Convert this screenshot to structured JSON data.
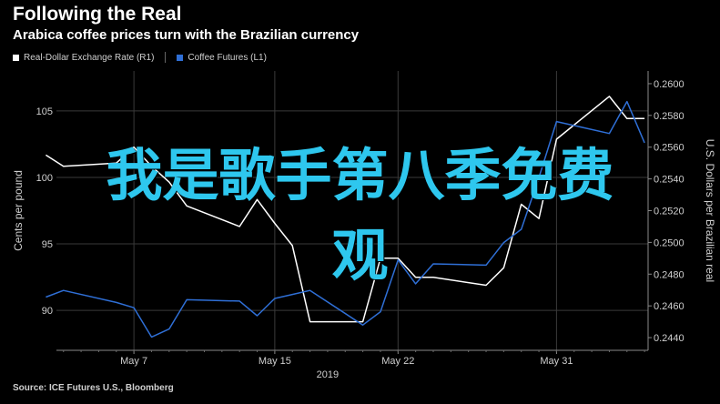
{
  "header": {
    "title": "Following the Real",
    "subtitle": "Arabica coffee prices turn with the Brazilian currency"
  },
  "legend": [
    {
      "label": "Real-Dollar Exchange Rate (R1)",
      "color": "#ffffff"
    },
    {
      "label": "Coffee Futures (L1)",
      "color": "#2f6fd6"
    }
  ],
  "overlay": {
    "line1": "我是歌手第八季免费",
    "line2": "观"
  },
  "footer": {
    "source": "Source: ICE Futures U.S., Bloomberg"
  },
  "chart_data": {
    "type": "line",
    "x_ticks": [
      "May 7",
      "May 15",
      "May 22",
      "May 31"
    ],
    "year_label": "2019",
    "left_axis": {
      "label": "Cents per pound",
      "ticks": [
        "90",
        "95",
        "100",
        "105"
      ],
      "range": [
        87,
        108
      ]
    },
    "right_axis": {
      "label": "U.S. Dollars per Brazilian real",
      "ticks": [
        "0.2440",
        "0.2460",
        "0.2480",
        "0.2500",
        "0.2520",
        "0.2540",
        "0.2560",
        "0.2580",
        "0.2600"
      ],
      "range": [
        0.2432,
        0.2608
      ]
    },
    "series": [
      {
        "name": "Real-Dollar Exchange Rate (R1)",
        "axis": "right",
        "color": "#ffffff",
        "dates": [
          "2019-05-02",
          "2019-05-03",
          "2019-05-06",
          "2019-05-07",
          "2019-05-08",
          "2019-05-09",
          "2019-05-10",
          "2019-05-13",
          "2019-05-14",
          "2019-05-15",
          "2019-05-16",
          "2019-05-17",
          "2019-05-20",
          "2019-05-21",
          "2019-05-22",
          "2019-05-23",
          "2019-05-24",
          "2019-05-27",
          "2019-05-28",
          "2019-05-29",
          "2019-05-30",
          "2019-05-31",
          "2019-06-03",
          "2019-06-04",
          "2019-06-05"
        ],
        "values": [
          0.2555,
          0.2548,
          0.255,
          0.256,
          0.2548,
          0.2538,
          0.2523,
          0.251,
          0.2527,
          0.2512,
          0.2498,
          0.245,
          0.245,
          0.249,
          0.249,
          0.2478,
          0.2478,
          0.2473,
          0.2484,
          0.2524,
          0.2515,
          0.2565,
          0.2592,
          0.2578,
          0.2578
        ]
      },
      {
        "name": "Coffee Futures (L1)",
        "axis": "left",
        "color": "#2f6fd6",
        "dates": [
          "2019-05-02",
          "2019-05-03",
          "2019-05-06",
          "2019-05-07",
          "2019-05-08",
          "2019-05-09",
          "2019-05-10",
          "2019-05-13",
          "2019-05-14",
          "2019-05-15",
          "2019-05-16",
          "2019-05-17",
          "2019-05-20",
          "2019-05-21",
          "2019-05-22",
          "2019-05-23",
          "2019-05-24",
          "2019-05-27",
          "2019-05-28",
          "2019-05-29",
          "2019-05-30",
          "2019-05-31",
          "2019-06-03",
          "2019-06-04",
          "2019-06-05"
        ],
        "values": [
          91.0,
          91.5,
          90.6,
          90.2,
          88.0,
          88.6,
          90.8,
          90.7,
          89.6,
          90.9,
          91.2,
          91.5,
          88.9,
          89.9,
          93.8,
          92.0,
          93.5,
          93.4,
          95.1,
          96.1,
          100.0,
          104.2,
          103.3,
          105.7,
          102.6
        ]
      }
    ],
    "grid": true
  }
}
